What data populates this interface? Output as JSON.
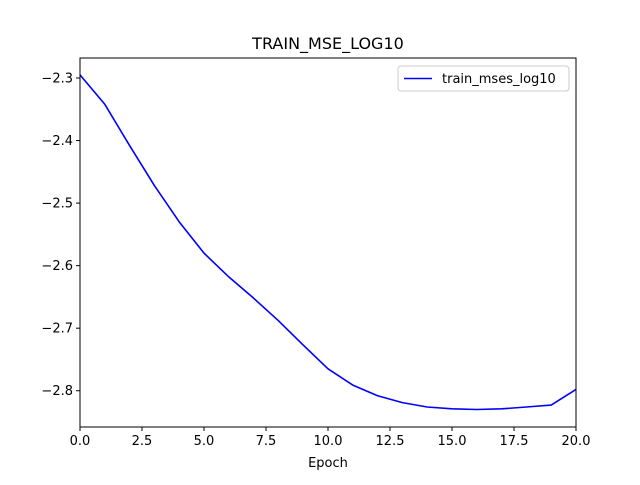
{
  "chart_data": {
    "type": "line",
    "title": "TRAIN_MSE_LOG10",
    "xlabel": "Epoch",
    "ylabel": "",
    "xlim": [
      0,
      20
    ],
    "ylim": [
      -2.858,
      -2.268
    ],
    "x_ticks": [
      0,
      2.5,
      5,
      7.5,
      10,
      12.5,
      15,
      17.5,
      20
    ],
    "x_tick_labels": [
      "0.0",
      "2.5",
      "5.0",
      "7.5",
      "10.0",
      "12.5",
      "15.0",
      "17.5",
      "20.0"
    ],
    "y_ticks": [
      -2.3,
      -2.4,
      -2.5,
      -2.6,
      -2.7,
      -2.8
    ],
    "y_tick_labels": [
      "−2.3",
      "−2.4",
      "−2.5",
      "−2.6",
      "−2.7",
      "−2.8"
    ],
    "grid": false,
    "legend": "top-right",
    "series": [
      {
        "name": "train_mses_log10",
        "color": "#0000ff",
        "x": [
          0,
          1,
          2,
          3,
          4,
          5,
          6,
          7,
          8,
          9,
          10,
          11,
          12,
          13,
          14,
          15,
          16,
          17,
          18,
          19,
          20
        ],
        "y": [
          -2.295,
          -2.342,
          -2.408,
          -2.472,
          -2.53,
          -2.58,
          -2.618,
          -2.652,
          -2.688,
          -2.727,
          -2.765,
          -2.791,
          -2.808,
          -2.819,
          -2.826,
          -2.829,
          -2.83,
          -2.829,
          -2.826,
          -2.823,
          -2.798
        ]
      }
    ]
  }
}
